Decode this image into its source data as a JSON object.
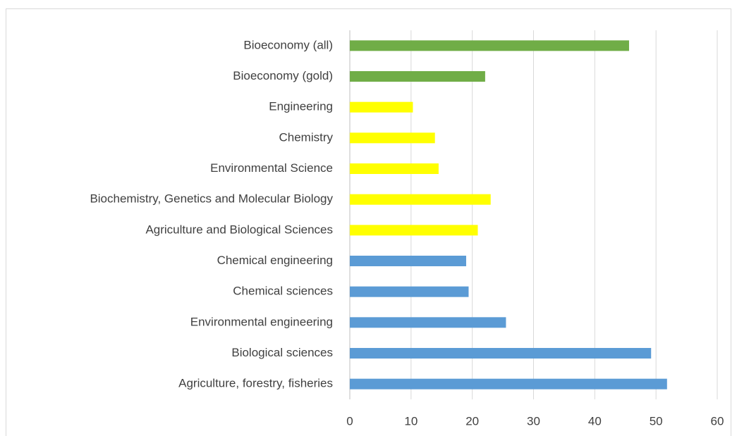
{
  "chart_data": {
    "type": "bar",
    "orientation": "horizontal",
    "categories": [
      "Bioeconomy (all)",
      "Bioeconomy (gold)",
      "Engineering",
      "Chemistry",
      "Environmental Science",
      "Biochemistry, Genetics and Molecular Biology",
      "Agriculture and Biological Sciences",
      "Chemical engineering",
      "Chemical sciences",
      "Environmental engineering",
      "Biological sciences",
      "Agriculture, forestry, fisheries"
    ],
    "values": [
      45.6,
      22.1,
      10.3,
      13.9,
      14.5,
      23.0,
      20.9,
      19.0,
      19.4,
      25.5,
      49.2,
      51.8
    ],
    "colors": [
      "#70ad47",
      "#70ad47",
      "#ffff00",
      "#ffff00",
      "#ffff00",
      "#ffff00",
      "#ffff00",
      "#5b9bd5",
      "#5b9bd5",
      "#5b9bd5",
      "#5b9bd5",
      "#5b9bd5"
    ],
    "xlim": [
      0,
      60
    ],
    "xticks": [
      0,
      10,
      20,
      30,
      40,
      50,
      60
    ],
    "grid": true
  }
}
